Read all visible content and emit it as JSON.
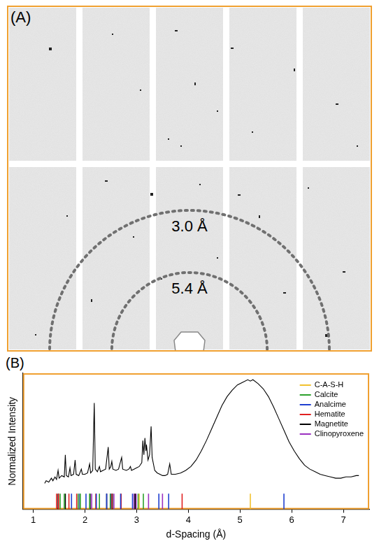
{
  "panel_a": {
    "label": "(A)",
    "rings": [
      {
        "d": 3.0,
        "label": "3.0 Å"
      },
      {
        "d": 5.4,
        "label": "5.4 Å"
      }
    ]
  },
  "chart_data": {
    "type": "line",
    "panel_label": "(B)",
    "x_label": "d-Spacing (Å)",
    "y_label": "Normalized Intensity",
    "xlim": [
      0.8,
      7.5
    ],
    "xticks": [
      1,
      2,
      3,
      4,
      5,
      6,
      7
    ],
    "ylim": [
      0,
      1.05
    ],
    "tick_labels": "x",
    "grid": false,
    "legend": "upper right",
    "color": "#000000",
    "x": [
      1.22,
      1.25,
      1.3,
      1.35,
      1.38,
      1.42,
      1.45,
      1.48,
      1.5,
      1.55,
      1.6,
      1.62,
      1.64,
      1.68,
      1.71,
      1.73,
      1.78,
      1.81,
      1.83,
      1.88,
      1.93,
      1.95,
      2.0,
      2.05,
      2.09,
      2.11,
      2.15,
      2.18,
      2.2,
      2.24,
      2.28,
      2.3,
      2.35,
      2.4,
      2.45,
      2.47,
      2.5,
      2.52,
      2.54,
      2.6,
      2.65,
      2.71,
      2.73,
      2.8,
      2.85,
      2.88,
      2.9,
      2.95,
      3.0,
      3.05,
      3.1,
      3.12,
      3.14,
      3.16,
      3.18,
      3.19,
      3.22,
      3.25,
      3.28,
      3.3,
      3.35,
      3.4,
      3.45,
      3.5,
      3.55,
      3.6,
      3.64,
      3.67,
      3.75,
      3.85,
      3.95,
      4.05,
      4.15,
      4.25,
      4.35,
      4.45,
      4.55,
      4.65,
      4.75,
      4.85,
      4.95,
      5.05,
      5.15,
      5.2,
      5.25,
      5.35,
      5.45,
      5.55,
      5.65,
      5.75,
      5.85,
      5.95,
      6.05,
      6.15,
      6.25,
      6.35,
      6.45,
      6.55,
      6.65,
      6.75,
      6.85,
      6.95,
      7.05,
      7.15,
      7.25,
      7.3
    ],
    "values": [
      0.2,
      0.22,
      0.21,
      0.24,
      0.22,
      0.25,
      0.23,
      0.3,
      0.24,
      0.26,
      0.25,
      0.42,
      0.26,
      0.25,
      0.32,
      0.26,
      0.27,
      0.38,
      0.27,
      0.26,
      0.31,
      0.27,
      0.27,
      0.28,
      0.35,
      0.28,
      0.3,
      0.82,
      0.31,
      0.29,
      0.33,
      0.29,
      0.3,
      0.31,
      0.48,
      0.31,
      0.33,
      0.37,
      0.31,
      0.3,
      0.31,
      0.4,
      0.31,
      0.3,
      0.31,
      0.33,
      0.3,
      0.31,
      0.32,
      0.33,
      0.36,
      0.53,
      0.42,
      0.55,
      0.45,
      0.5,
      0.38,
      0.42,
      0.64,
      0.4,
      0.3,
      0.28,
      0.27,
      0.26,
      0.26,
      0.27,
      0.35,
      0.27,
      0.27,
      0.28,
      0.3,
      0.33,
      0.38,
      0.45,
      0.53,
      0.62,
      0.71,
      0.8,
      0.87,
      0.92,
      0.96,
      0.98,
      1.0,
      0.99,
      1.0,
      0.97,
      0.93,
      0.87,
      0.79,
      0.7,
      0.61,
      0.52,
      0.45,
      0.39,
      0.34,
      0.31,
      0.29,
      0.27,
      0.26,
      0.25,
      0.24,
      0.24,
      0.25,
      0.25,
      0.26,
      0.26
    ],
    "phases": [
      {
        "name": "C-A-S-H",
        "color": "#f2c12e",
        "values": [
          3.05,
          5.2
        ]
      },
      {
        "name": "Calcite",
        "color": "#2ca02c",
        "values": [
          1.52,
          1.6,
          1.87,
          1.91,
          2.09,
          2.28,
          2.49,
          3.03,
          3.13
        ]
      },
      {
        "name": "Analcime",
        "color": "#1f3fd0",
        "values": [
          1.74,
          1.9,
          2.02,
          2.22,
          2.42,
          2.5,
          2.69,
          2.92,
          3.43,
          3.62,
          5.85
        ]
      },
      {
        "name": "Hematite",
        "color": "#e02020",
        "values": [
          1.45,
          1.49,
          1.69,
          1.84,
          2.21,
          2.52,
          2.7,
          3.88
        ]
      },
      {
        "name": "Magnetite",
        "color": "#000000",
        "values": [
          1.48,
          1.62,
          2.1,
          2.42,
          2.53,
          2.97
        ]
      },
      {
        "name": "Clinopyroxene",
        "color": "#9b30c0",
        "values": [
          2.13,
          2.56,
          2.95,
          2.99,
          3.23,
          3.5
        ]
      }
    ]
  }
}
